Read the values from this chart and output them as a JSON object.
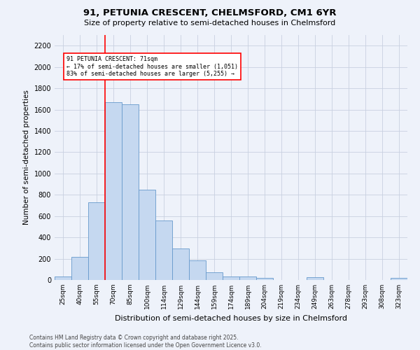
{
  "title_line1": "91, PETUNIA CRESCENT, CHELMSFORD, CM1 6YR",
  "title_line2": "Size of property relative to semi-detached houses in Chelmsford",
  "xlabel": "Distribution of semi-detached houses by size in Chelmsford",
  "ylabel": "Number of semi-detached properties",
  "bar_labels": [
    "25sqm",
    "40sqm",
    "55sqm",
    "70sqm",
    "85sqm",
    "100sqm",
    "114sqm",
    "129sqm",
    "144sqm",
    "159sqm",
    "174sqm",
    "189sqm",
    "204sqm",
    "219sqm",
    "234sqm",
    "249sqm",
    "263sqm",
    "278sqm",
    "293sqm",
    "308sqm",
    "323sqm"
  ],
  "bar_values": [
    35,
    220,
    730,
    1670,
    1650,
    850,
    560,
    295,
    185,
    70,
    35,
    30,
    20,
    0,
    0,
    25,
    0,
    0,
    0,
    0,
    20
  ],
  "bar_color": "#c5d8f0",
  "bar_edge_color": "#6699cc",
  "annotation_label": "91 PETUNIA CRESCENT: 71sqm",
  "annotation_smaller": "← 17% of semi-detached houses are smaller (1,051)",
  "annotation_larger": "83% of semi-detached houses are larger (5,255) →",
  "vline_index": 3,
  "vline_color": "red",
  "ylim": [
    0,
    2300
  ],
  "yticks": [
    0,
    200,
    400,
    600,
    800,
    1000,
    1200,
    1400,
    1600,
    1800,
    2000,
    2200
  ],
  "footer_line1": "Contains HM Land Registry data © Crown copyright and database right 2025.",
  "footer_line2": "Contains public sector information licensed under the Open Government Licence v3.0.",
  "bg_color": "#eef2fa",
  "grid_color": "#c8d0e0"
}
